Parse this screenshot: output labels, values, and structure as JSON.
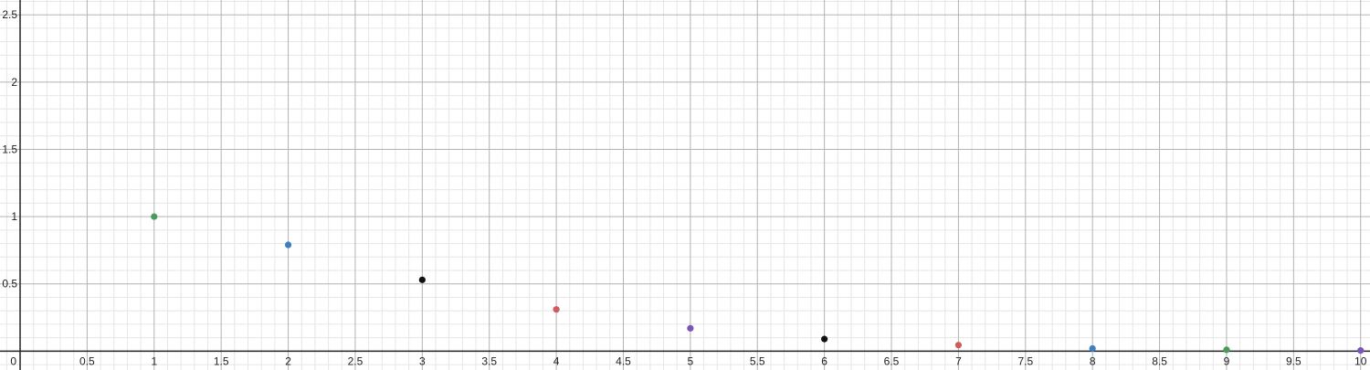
{
  "chart_data": {
    "type": "scatter",
    "xlim": [
      -0.15,
      10.07
    ],
    "ylim": [
      -0.14,
      2.61
    ],
    "grid": {
      "major": true,
      "minor": true,
      "major_step": 0.5,
      "minor_step": 0.1
    },
    "x_ticks": [
      {
        "value": 0.5,
        "label": "0.5"
      },
      {
        "value": 1,
        "label": "1"
      },
      {
        "value": 1.5,
        "label": "1.5"
      },
      {
        "value": 2,
        "label": "2"
      },
      {
        "value": 2.5,
        "label": "2.5"
      },
      {
        "value": 3,
        "label": "3"
      },
      {
        "value": 3.5,
        "label": "3.5"
      },
      {
        "value": 4,
        "label": "4"
      },
      {
        "value": 4.5,
        "label": "4.5"
      },
      {
        "value": 5,
        "label": "5"
      },
      {
        "value": 5.5,
        "label": "5.5"
      },
      {
        "value": 6,
        "label": "6"
      },
      {
        "value": 6.5,
        "label": "6.5"
      },
      {
        "value": 7,
        "label": "7"
      },
      {
        "value": 7.5,
        "label": "7.5"
      },
      {
        "value": 8,
        "label": "8"
      },
      {
        "value": 8.5,
        "label": "8.5"
      },
      {
        "value": 9,
        "label": "9"
      },
      {
        "value": 9.5,
        "label": "9.5"
      },
      {
        "value": 10,
        "label": "10"
      }
    ],
    "y_ticks": [
      {
        "value": 0.5,
        "label": "0.5"
      },
      {
        "value": 1,
        "label": "1"
      },
      {
        "value": 1.5,
        "label": "1.5"
      },
      {
        "value": 2,
        "label": "2"
      },
      {
        "value": 2.5,
        "label": "2.5"
      }
    ],
    "origin_label": "0",
    "points": [
      {
        "x": 1,
        "y": 1.0,
        "color": "#4a9a5a"
      },
      {
        "x": 2,
        "y": 0.79,
        "color": "#3d7fc1"
      },
      {
        "x": 3,
        "y": 0.53,
        "color": "#111111"
      },
      {
        "x": 4,
        "y": 0.31,
        "color": "#cf5b5b"
      },
      {
        "x": 5,
        "y": 0.17,
        "color": "#7b55b5"
      },
      {
        "x": 6,
        "y": 0.09,
        "color": "#111111"
      },
      {
        "x": 7,
        "y": 0.045,
        "color": "#cf5b5b"
      },
      {
        "x": 8,
        "y": 0.02,
        "color": "#3d7fc1"
      },
      {
        "x": 9,
        "y": 0.01,
        "color": "#4a9a5a"
      },
      {
        "x": 10,
        "y": 0.005,
        "color": "#7b55b5"
      }
    ]
  }
}
